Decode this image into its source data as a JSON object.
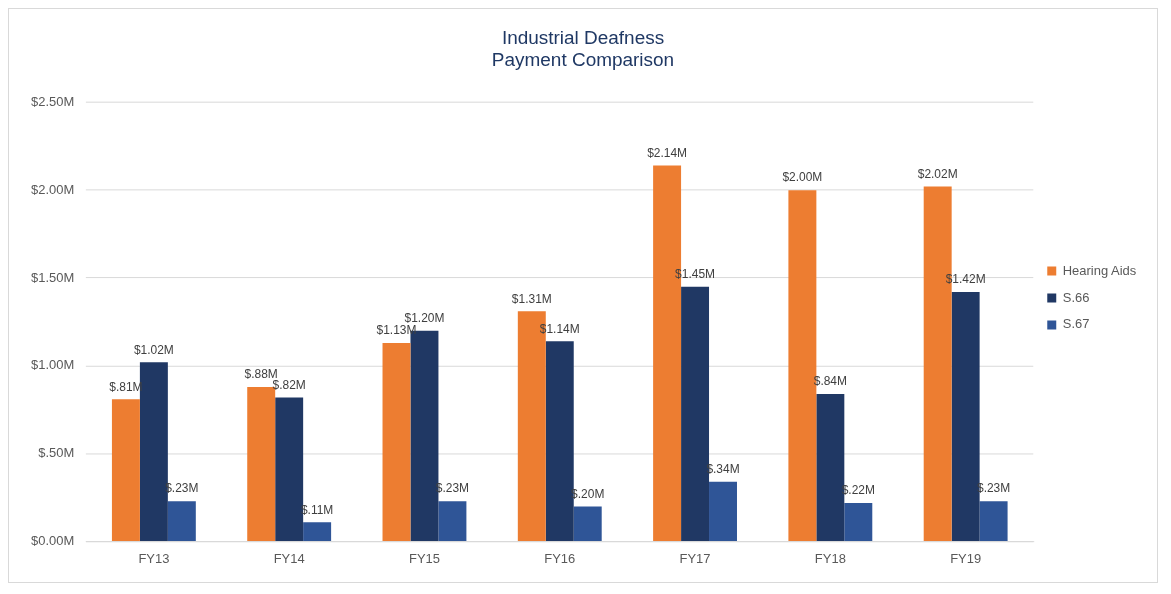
{
  "chart_data": {
    "type": "bar",
    "title": "Industrial Deafness\nPayment Comparison",
    "categories": [
      "FY13",
      "FY14",
      "FY15",
      "FY16",
      "FY17",
      "FY18",
      "FY19"
    ],
    "series": [
      {
        "name": "Hearing Aids",
        "color": "#ed7d31",
        "values": [
          0.81,
          0.88,
          1.13,
          1.31,
          2.14,
          2.0,
          2.02
        ],
        "value_labels": [
          "$.81M",
          "$.88M",
          "$1.13M",
          "$1.31M",
          "$2.14M",
          "$2.00M",
          "$2.02M"
        ]
      },
      {
        "name": "S.66",
        "color": "#203864",
        "values": [
          1.02,
          0.82,
          1.2,
          1.14,
          1.45,
          0.84,
          1.42
        ],
        "value_labels": [
          "$1.02M",
          "$.82M",
          "$1.20M",
          "$1.14M",
          "$1.45M",
          "$.84M",
          "$1.42M"
        ]
      },
      {
        "name": "S.67",
        "color": "#2f5597",
        "values": [
          0.23,
          0.11,
          0.23,
          0.2,
          0.34,
          0.22,
          0.23
        ],
        "value_labels": [
          "$.23M",
          "$.11M",
          "$.23M",
          "$.20M",
          "$.34M",
          "$.22M",
          "$.23M"
        ]
      }
    ],
    "ylim": [
      0,
      2.5
    ],
    "yticks": [
      {
        "value": 0,
        "label": "$0.00M"
      },
      {
        "value": 0.5,
        "label": "$.50M"
      },
      {
        "value": 1,
        "label": "$1.00M"
      },
      {
        "value": 1.5,
        "label": "$1.50M"
      },
      {
        "value": 2,
        "label": "$2.00M"
      },
      {
        "value": 2.5,
        "label": "$2.50M"
      }
    ],
    "grid": "y",
    "legend": "right"
  }
}
